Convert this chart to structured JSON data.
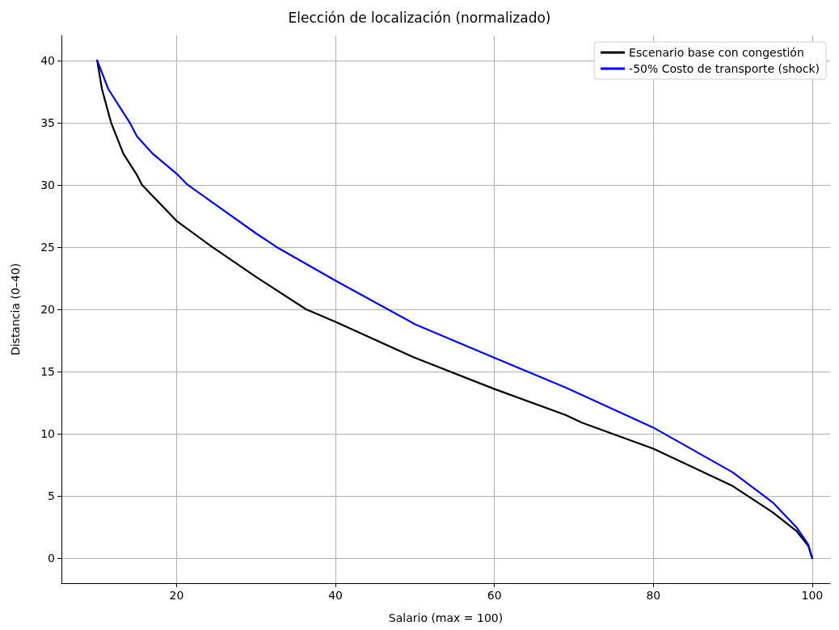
{
  "chart_data": {
    "type": "line",
    "title": "Elección de localización (normalizado)",
    "xlabel": "Salario (max = 100)",
    "ylabel": "Distancia (0–40)",
    "xlim": [
      5.5,
      102.25
    ],
    "xticks": [
      20,
      40,
      60,
      80,
      100
    ],
    "ylim": [
      -2,
      42
    ],
    "yticks": [
      0,
      5,
      10,
      15,
      20,
      25,
      30,
      35,
      40
    ],
    "grid": true,
    "legend": "top right",
    "marker": "none",
    "line_style": "solid",
    "series": [
      {
        "name": "Escenario base con congestión",
        "color": "#000000",
        "x": [
          10,
          10.6,
          11.75,
          13.3,
          15,
          15.65,
          20,
          24.5,
          30,
          36.3,
          40,
          50,
          60,
          69,
          71,
          80,
          90,
          95,
          98,
          99.5,
          100
        ],
        "values": [
          40,
          37.7,
          35,
          32.5,
          30.8,
          30,
          27.1,
          25,
          22.6,
          20,
          19,
          16.1,
          13.6,
          11.5,
          10.9,
          8.8,
          5.8,
          3.7,
          2.2,
          1,
          0
        ]
      },
      {
        "name": "-50% Costo de transporte (shock)",
        "color": "#0000ff",
        "x": [
          10,
          11.4,
          14.1,
          15,
          17,
          20,
          21.4,
          30,
          32.6,
          40,
          50,
          60,
          69,
          80,
          90,
          95,
          98,
          99.5,
          100
        ],
        "values": [
          40,
          37.7,
          35,
          33.9,
          32.5,
          30.9,
          30,
          26.1,
          25,
          22.3,
          18.8,
          16.1,
          13.7,
          10.5,
          6.9,
          4.5,
          2.5,
          1.1,
          0
        ]
      }
    ]
  }
}
